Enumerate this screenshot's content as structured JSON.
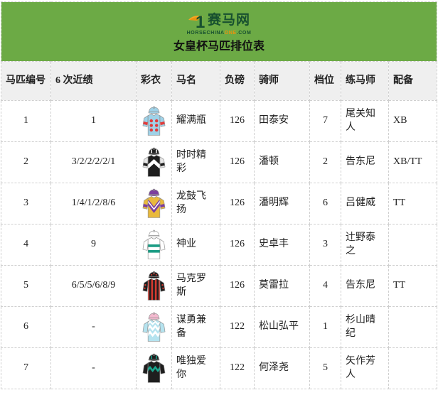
{
  "banner": {
    "logo_one": "1",
    "brand": "赛马网",
    "domain_prefix": "HORSECHINA",
    "domain_accent": "ONE",
    "domain_suffix": ".COM",
    "title": "女皇杯马匹排位表"
  },
  "colors": {
    "banner_green": "#6CAA45",
    "logo_dark_green": "#17502F",
    "logo_orange": "#E8920E",
    "header_gray": "#EFEFEF",
    "border_dashed": "#cfcfcf"
  },
  "table": {
    "columns": [
      {
        "key": "num",
        "label": "马匹编号",
        "align": "left"
      },
      {
        "key": "recent",
        "label": "6 次近绩",
        "align": "left"
      },
      {
        "key": "silk",
        "label": "彩衣",
        "align": "left"
      },
      {
        "key": "name",
        "label": "马名",
        "align": "left"
      },
      {
        "key": "weight",
        "label": "负磅",
        "align": "left"
      },
      {
        "key": "jockey",
        "label": "骑师",
        "align": "left"
      },
      {
        "key": "gate",
        "label": "档位",
        "align": "left"
      },
      {
        "key": "trainer",
        "label": "练马师",
        "align": "left"
      },
      {
        "key": "equip",
        "label": "配备",
        "align": "left"
      }
    ],
    "rows": [
      {
        "num": "1",
        "recent": "1",
        "name": "耀满瓶",
        "weight": "126",
        "jockey": "田泰安",
        "gate": "7",
        "trainer": "尾关知人",
        "equip": "XB",
        "silk": {
          "cap": "#9FD2E8",
          "body": "#9FD2E8",
          "sleeve": "#9FD2E8",
          "pattern": "spots",
          "accent": "#E23B3B",
          "sleeve_band": "#E23B3B"
        }
      },
      {
        "num": "2",
        "recent": "3/2/2/2/2/1",
        "name": "时时精彩",
        "weight": "126",
        "jockey": "潘顿",
        "gate": "2",
        "trainer": "告东尼",
        "equip": "XB/TT",
        "silk": {
          "cap": "#1E1E1E",
          "body": "#1E1E1E",
          "sleeve": "#E6E6E6",
          "pattern": "chevron",
          "accent": "#FFFFFF",
          "cap_accent": "#FFFFFF",
          "sleeve_band": "#1E1E1E"
        }
      },
      {
        "num": "3",
        "recent": "1/4/1/2/8/6",
        "name": "龙鼓飞扬",
        "weight": "126",
        "jockey": "潘明辉",
        "gate": "6",
        "trainer": "吕健威",
        "equip": "TT",
        "silk": {
          "cap": "#7C3F9E",
          "body": "#E9B93C",
          "sleeve": "#E9B93C",
          "pattern": "vee",
          "accent": "#7C3F9E",
          "accent2": "#FFFFFF",
          "sleeve_band": "#7C3F9E"
        }
      },
      {
        "num": "4",
        "recent": "9",
        "name": "神业",
        "weight": "126",
        "jockey": "史卓丰",
        "gate": "3",
        "trainer": "辻野泰之",
        "equip": "",
        "silk": {
          "cap": "#FFFFFF",
          "body": "#FFFFFF",
          "sleeve": "#FFFFFF",
          "pattern": "hoops",
          "accent": "#1B9C84"
        }
      },
      {
        "num": "5",
        "recent": "6/5/5/6/8/9",
        "name": "马克罗斯",
        "weight": "126",
        "jockey": "莫雷拉",
        "gate": "4",
        "trainer": "告东尼",
        "equip": "TT",
        "silk": {
          "cap": "#1E1E1E",
          "body": "#D63A2F",
          "sleeve": "#1E1E1E",
          "pattern": "stripes",
          "accent": "#1E1E1E",
          "cap_dots": "#D63A2F",
          "sleeve_dots": "#D63A2F"
        }
      },
      {
        "num": "6",
        "recent": "-",
        "name": "谋勇兼备",
        "weight": "122",
        "jockey": "松山弘平",
        "gate": "1",
        "trainer": "杉山晴纪",
        "equip": "",
        "silk": {
          "cap": "#F4B9CF",
          "body": "#B5E3EF",
          "sleeve": "#B5E3EF",
          "pattern": "zigzag2",
          "accent": "#FFFFFF"
        }
      },
      {
        "num": "7",
        "recent": "-",
        "name": "唯独爱你",
        "weight": "122",
        "jockey": "何泽尧",
        "gate": "5",
        "trainer": "矢作芳人",
        "equip": "",
        "silk": {
          "cap": "#1E1E1E",
          "body": "#1E1E1E",
          "sleeve": "#1E1E1E",
          "pattern": "zigzag",
          "accent": "#18A78F",
          "cap_accent": "#18A78F"
        }
      }
    ]
  }
}
